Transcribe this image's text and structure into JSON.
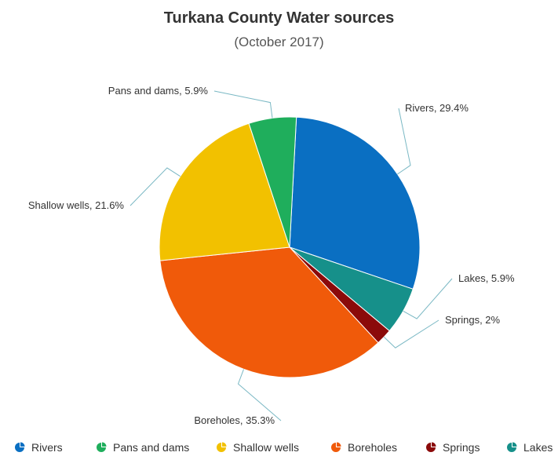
{
  "chart_data": {
    "type": "pie",
    "title": "Turkana County Water sources",
    "subtitle": "(October 2017)",
    "slices": [
      {
        "name": "Rivers",
        "value": 29.4,
        "label": "Rivers, 29.4%",
        "color": "#0a6fc2"
      },
      {
        "name": "Lakes",
        "value": 5.9,
        "label": "Lakes, 5.9%",
        "color": "#16908a"
      },
      {
        "name": "Springs",
        "value": 2,
        "label": "Springs, 2%",
        "color": "#8b0a0a"
      },
      {
        "name": "Boreholes",
        "value": 35.3,
        "label": "Boreholes, 35.3%",
        "color": "#f05a0a"
      },
      {
        "name": "Shallow wells",
        "value": 21.6,
        "label": "Shallow wells, 21.6%",
        "color": "#f2c100"
      },
      {
        "name": "Pans and dams",
        "value": 5.9,
        "label": "Pans and dams, 5.9%",
        "color": "#1fae5c"
      }
    ],
    "legend": {
      "position": "bottom",
      "items": [
        "Rivers",
        "Pans and dams",
        "Shallow wells",
        "Boreholes",
        "Springs",
        "Lakes"
      ]
    }
  }
}
